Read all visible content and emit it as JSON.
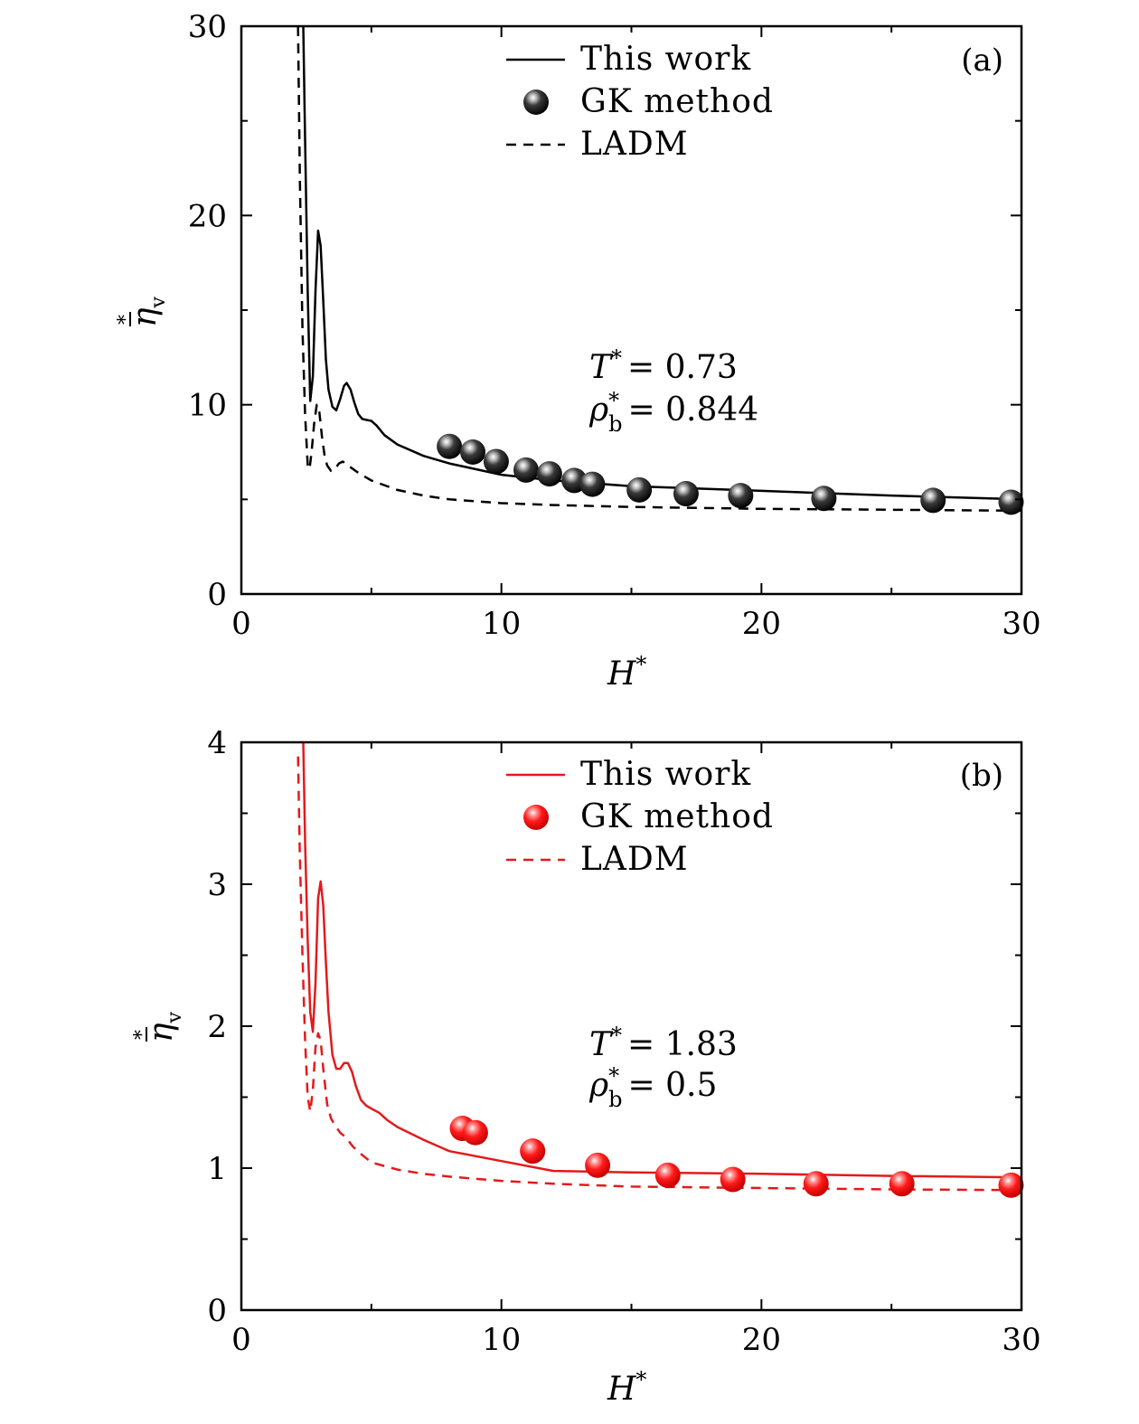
{
  "chart_data": [
    {
      "type": "line",
      "panel_label": "(a)",
      "xlabel": "H*",
      "ylabel": "η̄*v",
      "xlim": [
        0,
        30
      ],
      "ylim": [
        0,
        30
      ],
      "xticks": [
        "0",
        "10",
        "20",
        "30"
      ],
      "yticks": [
        "0",
        "10",
        "20",
        "30"
      ],
      "annotation": {
        "T_label": "T",
        "T_value": "= 0.73",
        "rho_label": "ρ",
        "rho_value": "= 0.844"
      },
      "color": "#000000",
      "legend": [
        "This work",
        "GK method",
        "LADM"
      ],
      "series": [
        {
          "name": "This work",
          "style": "solid",
          "x": [
            2.38,
            2.45,
            2.55,
            2.65,
            2.75,
            2.85,
            2.95,
            3.05,
            3.15,
            3.25,
            3.35,
            3.5,
            3.65,
            3.8,
            3.95,
            4.05,
            4.2,
            4.35,
            4.5,
            4.65,
            4.8,
            5.0,
            5.2,
            5.5,
            6,
            7,
            8,
            10,
            12,
            15,
            20,
            25,
            30
          ],
          "y": [
            30,
            24,
            16,
            10.2,
            11.5,
            16,
            19.2,
            18.4,
            15.5,
            12.4,
            10.8,
            9.9,
            9.7,
            10.3,
            11.0,
            11.15,
            10.8,
            10.1,
            9.5,
            9.25,
            9.2,
            9.15,
            8.9,
            8.4,
            7.9,
            7.3,
            6.9,
            6.3,
            6.0,
            5.7,
            5.45,
            5.2,
            5.0
          ]
        },
        {
          "name": "GK method",
          "style": "markers",
          "x": [
            8.0,
            8.9,
            9.8,
            10.95,
            11.85,
            12.8,
            13.5,
            15.3,
            17.1,
            19.2,
            22.4,
            26.6,
            29.6
          ],
          "y": [
            7.8,
            7.5,
            7.0,
            6.55,
            6.35,
            6.0,
            5.8,
            5.5,
            5.3,
            5.2,
            5.05,
            4.95,
            4.85
          ]
        },
        {
          "name": "LADM",
          "style": "dashed",
          "x": [
            2.18,
            2.25,
            2.35,
            2.45,
            2.55,
            2.62,
            2.7,
            2.8,
            2.9,
            3.0,
            3.1,
            3.2,
            3.3,
            3.45,
            3.6,
            3.75,
            3.9,
            4.1,
            4.5,
            5,
            6,
            7,
            8,
            10,
            12,
            15,
            20,
            25,
            30
          ],
          "y": [
            30,
            22,
            14,
            9.5,
            6.8,
            6.6,
            7.5,
            9.0,
            10.0,
            9.6,
            8.3,
            7.3,
            6.8,
            6.5,
            6.6,
            6.9,
            7.0,
            6.8,
            6.4,
            6.0,
            5.5,
            5.2,
            5.0,
            4.8,
            4.7,
            4.6,
            4.5,
            4.45,
            4.4
          ]
        }
      ]
    },
    {
      "type": "line",
      "panel_label": "(b)",
      "xlabel": "H*",
      "ylabel": "η̄*v",
      "xlim": [
        0,
        30
      ],
      "ylim": [
        0,
        4
      ],
      "xticks": [
        "0",
        "10",
        "20",
        "30"
      ],
      "yticks": [
        "0",
        "1",
        "2",
        "3",
        "4"
      ],
      "annotation": {
        "T_label": "T",
        "T_value": "= 1.83",
        "rho_label": "ρ",
        "rho_value": "= 0.5"
      },
      "color": "#e31a1c",
      "legend": [
        "This work",
        "GK method",
        "LADM"
      ],
      "series": [
        {
          "name": "This work",
          "style": "solid",
          "x": [
            2.38,
            2.45,
            2.55,
            2.65,
            2.75,
            2.85,
            2.95,
            3.05,
            3.15,
            3.25,
            3.35,
            3.5,
            3.65,
            3.8,
            3.95,
            4.1,
            4.25,
            4.4,
            4.6,
            4.8,
            5.0,
            5.3,
            5.6,
            6,
            7,
            8,
            10,
            12,
            15,
            20,
            25,
            30
          ],
          "y": [
            4.0,
            3.3,
            2.6,
            2.1,
            1.96,
            2.3,
            2.9,
            3.02,
            2.85,
            2.45,
            2.1,
            1.8,
            1.7,
            1.7,
            1.74,
            1.74,
            1.68,
            1.58,
            1.48,
            1.44,
            1.42,
            1.39,
            1.34,
            1.29,
            1.2,
            1.12,
            1.05,
            0.98,
            0.97,
            0.96,
            0.945,
            0.935
          ]
        },
        {
          "name": "GK method",
          "style": "markers",
          "x": [
            8.5,
            9.0,
            11.2,
            13.7,
            16.4,
            18.9,
            22.1,
            25.4,
            29.6
          ],
          "y": [
            1.28,
            1.25,
            1.12,
            1.02,
            0.95,
            0.92,
            0.89,
            0.89,
            0.88
          ]
        },
        {
          "name": "LADM",
          "style": "dashed",
          "x": [
            2.18,
            2.25,
            2.35,
            2.45,
            2.55,
            2.65,
            2.75,
            2.85,
            2.95,
            3.05,
            3.15,
            3.3,
            3.45,
            3.6,
            3.8,
            4.0,
            4.3,
            4.6,
            5,
            6,
            7,
            8,
            10,
            12,
            15,
            20,
            25,
            30
          ],
          "y": [
            3.9,
            3.2,
            2.5,
            1.9,
            1.5,
            1.4,
            1.55,
            1.85,
            1.95,
            1.9,
            1.7,
            1.45,
            1.35,
            1.3,
            1.25,
            1.22,
            1.15,
            1.1,
            1.04,
            0.99,
            0.96,
            0.94,
            0.91,
            0.89,
            0.87,
            0.86,
            0.85,
            0.845
          ]
        }
      ]
    }
  ]
}
